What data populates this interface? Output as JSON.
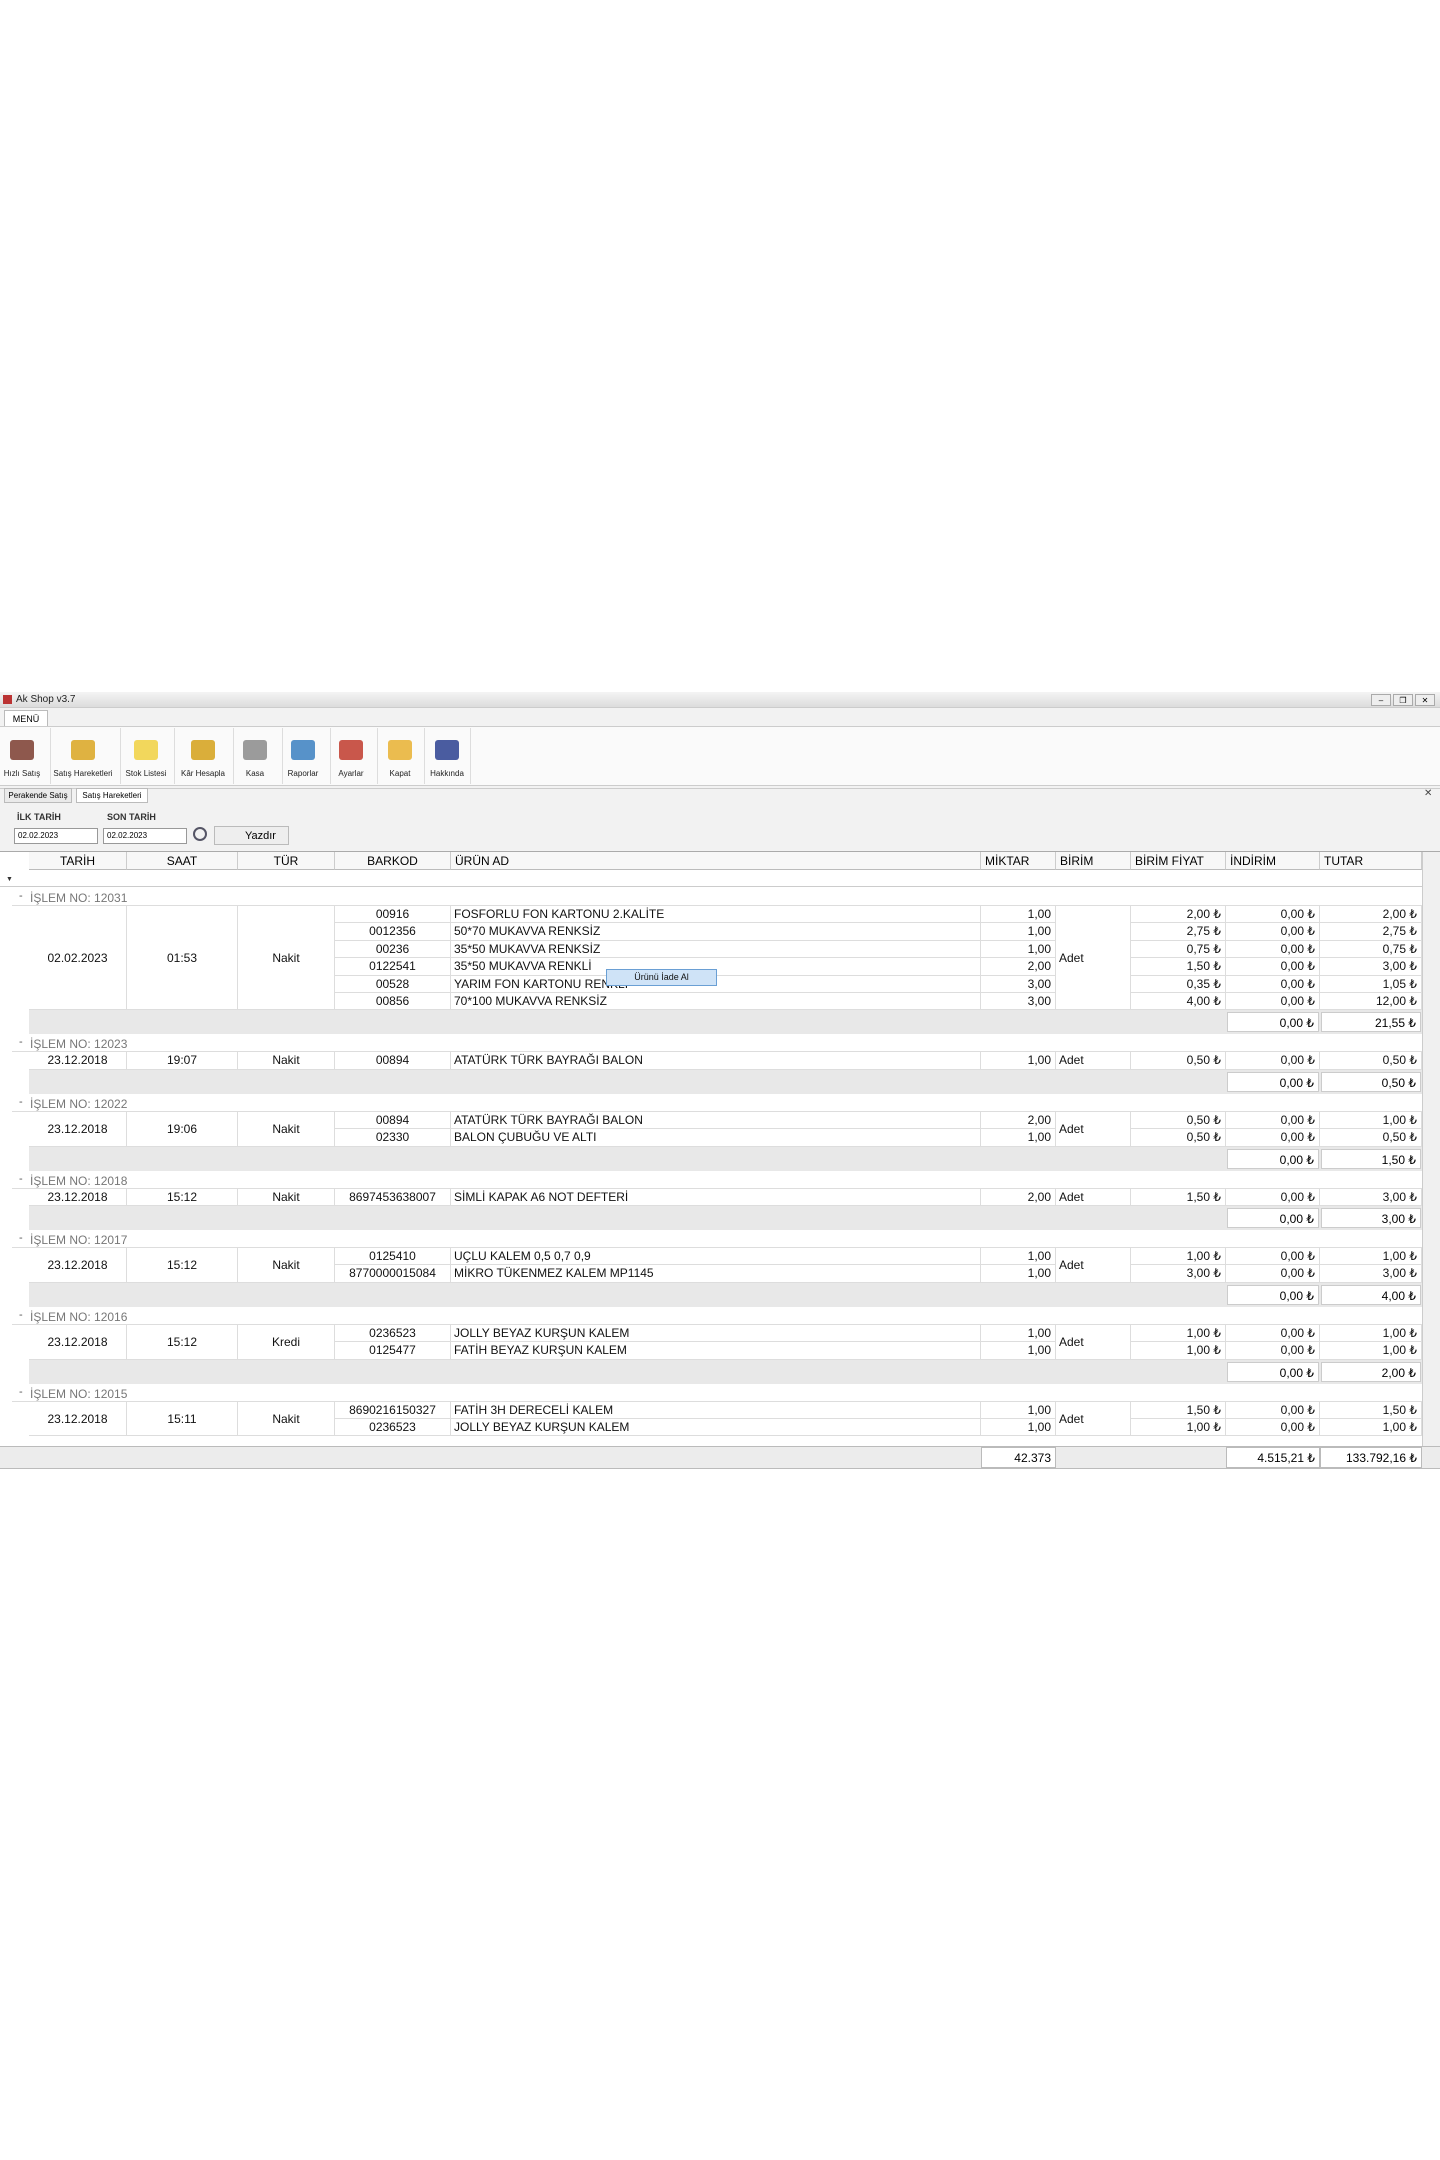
{
  "window": {
    "title": "Ak Shop v3.7",
    "menu_tab": "MENÜ"
  },
  "toolbar": [
    "Hızlı Satış",
    "Satış Hareketleri",
    "Stok Listesi",
    "Kâr Hesapla",
    "Kasa",
    "Raporlar",
    "Ayarlar",
    "Kapat",
    "Hakkında"
  ],
  "tabs": [
    "Perakende Satış",
    "Satış Hareketleri"
  ],
  "filter": {
    "first_label": "İLK TARİH",
    "first_value": "02.02.2023",
    "last_label": "SON TARİH",
    "last_value": "02.02.2023",
    "print_button": "Yazdır"
  },
  "columns": [
    "TARİH",
    "SAAT",
    "TÜR",
    "BARKOD",
    "ÜRÜN AD",
    "MİKTAR",
    "BİRİM",
    "BİRİM FİYAT",
    "İNDİRİM",
    "TUTAR"
  ],
  "groups": [
    {
      "title": "İŞLEM NO: 12031",
      "date": "02.02.2023",
      "time": "01:53",
      "type": "Nakit",
      "unit": "Adet",
      "items": [
        [
          "00916",
          "FOSFORLU FON KARTONU 2.KALİTE",
          "1,00",
          "2,00 ₺",
          "0,00 ₺",
          "2,00 ₺"
        ],
        [
          "0012356",
          "50*70 MUKAVVA RENKSİZ",
          "1,00",
          "2,75 ₺",
          "0,00 ₺",
          "2,75 ₺"
        ],
        [
          "00236",
          "35*50 MUKAVVA RENKSİZ",
          "1,00",
          "0,75 ₺",
          "0,00 ₺",
          "0,75 ₺"
        ],
        [
          "0122541",
          "35*50 MUKAVVA RENKLİ",
          "2,00",
          "1,50 ₺",
          "0,00 ₺",
          "3,00 ₺"
        ],
        [
          "00528",
          "YARIM FON KARTONU RENKLİ",
          "3,00",
          "0,35 ₺",
          "0,00 ₺",
          "1,05 ₺"
        ],
        [
          "00856",
          "70*100 MUKAVVA RENKSİZ",
          "3,00",
          "4,00 ₺",
          "0,00 ₺",
          "12,00 ₺"
        ]
      ],
      "discount_total": "0,00 ₺",
      "total": "21,55 ₺"
    },
    {
      "title": "İŞLEM NO: 12023",
      "date": "23.12.2018",
      "time": "19:07",
      "type": "Nakit",
      "unit": "Adet",
      "items": [
        [
          "00894",
          "ATATÜRK TÜRK BAYRAĞI BALON",
          "1,00",
          "0,50 ₺",
          "0,00 ₺",
          "0,50 ₺"
        ]
      ],
      "discount_total": "0,00 ₺",
      "total": "0,50 ₺"
    },
    {
      "title": "İŞLEM NO: 12022",
      "date": "23.12.2018",
      "time": "19:06",
      "type": "Nakit",
      "unit": "Adet",
      "items": [
        [
          "00894",
          "ATATÜRK TÜRK BAYRAĞI BALON",
          "2,00",
          "0,50 ₺",
          "0,00 ₺",
          "1,00 ₺"
        ],
        [
          "02330",
          "BALON ÇUBUĞU VE ALTI",
          "1,00",
          "0,50 ₺",
          "0,00 ₺",
          "0,50 ₺"
        ]
      ],
      "discount_total": "0,00 ₺",
      "total": "1,50 ₺"
    },
    {
      "title": "İŞLEM NO: 12018",
      "date": "23.12.2018",
      "time": "15:12",
      "type": "Nakit",
      "unit": "Adet",
      "items": [
        [
          "8697453638007",
          "SİMLİ KAPAK A6 NOT DEFTERİ",
          "2,00",
          "1,50 ₺",
          "0,00 ₺",
          "3,00 ₺"
        ]
      ],
      "discount_total": "0,00 ₺",
      "total": "3,00 ₺"
    },
    {
      "title": "İŞLEM NO: 12017",
      "date": "23.12.2018",
      "time": "15:12",
      "type": "Nakit",
      "unit": "Adet",
      "items": [
        [
          "0125410",
          "UÇLU KALEM 0,5 0,7 0,9",
          "1,00",
          "1,00 ₺",
          "0,00 ₺",
          "1,00 ₺"
        ],
        [
          "8770000015084",
          "MİKRO TÜKENMEZ KALEM MP1145",
          "1,00",
          "3,00 ₺",
          "0,00 ₺",
          "3,00 ₺"
        ]
      ],
      "discount_total": "0,00 ₺",
      "total": "4,00 ₺"
    },
    {
      "title": "İŞLEM NO: 12016",
      "date": "23.12.2018",
      "time": "15:12",
      "type": "Kredi",
      "unit": "Adet",
      "items": [
        [
          "0236523",
          "JOLLY BEYAZ KURŞUN KALEM",
          "1,00",
          "1,00 ₺",
          "0,00 ₺",
          "1,00 ₺"
        ],
        [
          "0125477",
          "FATİH BEYAZ KURŞUN KALEM",
          "1,00",
          "1,00 ₺",
          "0,00 ₺",
          "1,00 ₺"
        ]
      ],
      "discount_total": "0,00 ₺",
      "total": "2,00 ₺"
    },
    {
      "title": "İŞLEM NO: 12015",
      "date": "23.12.2018",
      "time": "15:11",
      "type": "Nakit",
      "unit": "Adet",
      "items": [
        [
          "8690216150327",
          "FATİH 3H DERECELİ KALEM",
          "1,00",
          "1,50 ₺",
          "0,00 ₺",
          "1,50 ₺"
        ],
        [
          "0236523",
          "JOLLY BEYAZ KURŞUN KALEM",
          "1,00",
          "1,00 ₺",
          "0,00 ₺",
          "1,00 ₺"
        ]
      ]
    }
  ],
  "context_menu": "Ürünü İade Al",
  "footer": {
    "qty_total": "42.373",
    "discount_total": "4.515,21 ₺",
    "total": "133.792,16 ₺"
  }
}
